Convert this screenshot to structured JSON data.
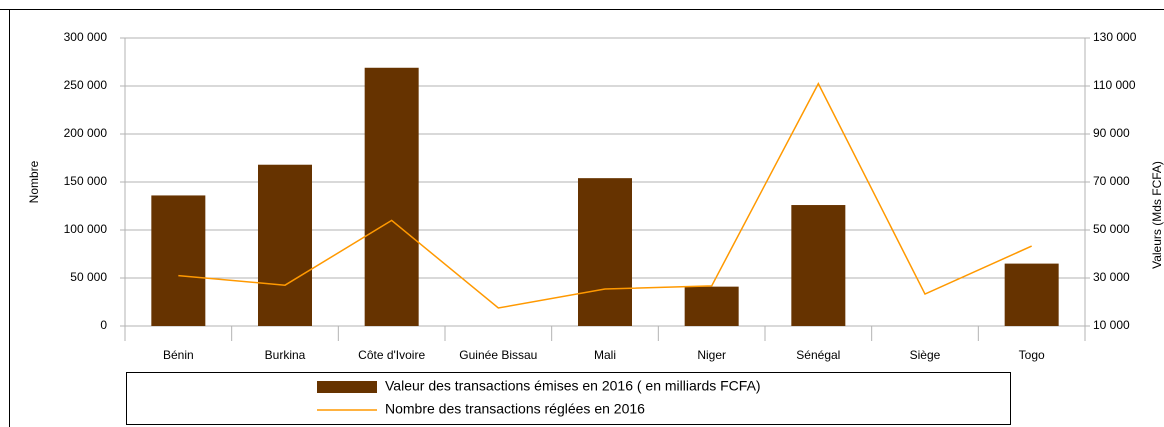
{
  "chart_data": {
    "type": "bar_line",
    "categories": [
      "Bénin",
      "Burkina",
      "Côte d'Ivoire",
      "Guinée Bissau",
      "Mali",
      "Niger",
      "Sénégal",
      "Siège",
      "Togo"
    ],
    "ylabel": "Nombre",
    "y2label": "Valeurs (Mds FCFA)",
    "ylim": [
      0,
      300000
    ],
    "yticks": [
      {
        "value": 0,
        "label": "0"
      },
      {
        "value": 50000,
        "label": "50 000"
      },
      {
        "value": 100000,
        "label": "100 000"
      },
      {
        "value": 150000,
        "label": "150 000"
      },
      {
        "value": 200000,
        "label": "200 000"
      },
      {
        "value": 250000,
        "label": "250 000"
      },
      {
        "value": 300000,
        "label": "300 000"
      }
    ],
    "y2lim": [
      10000,
      130000
    ],
    "y2ticks": [
      {
        "value": 10000,
        "label": "10 000"
      },
      {
        "value": 30000,
        "label": "30 000"
      },
      {
        "value": 50000,
        "label": "50 000"
      },
      {
        "value": 70000,
        "label": "70 000"
      },
      {
        "value": 90000,
        "label": "90 000"
      },
      {
        "value": 110000,
        "label": "110 000"
      },
      {
        "value": 130000,
        "label": "130 000"
      }
    ],
    "grid": true,
    "series": [
      {
        "name": "Valeur des transactions émises en 2016 ( en milliards FCFA)",
        "type": "bar",
        "color": "#663300",
        "values": [
          136000,
          168000,
          269000,
          0,
          154000,
          41000,
          126000,
          0,
          65000
        ]
      },
      {
        "name": "Nombre des transactions réglées en 2016",
        "type": "line",
        "axis": "y2",
        "color": "#ff9900",
        "values": [
          31000,
          27000,
          54000,
          17500,
          25400,
          26700,
          111000,
          23300,
          43300
        ]
      }
    ]
  }
}
